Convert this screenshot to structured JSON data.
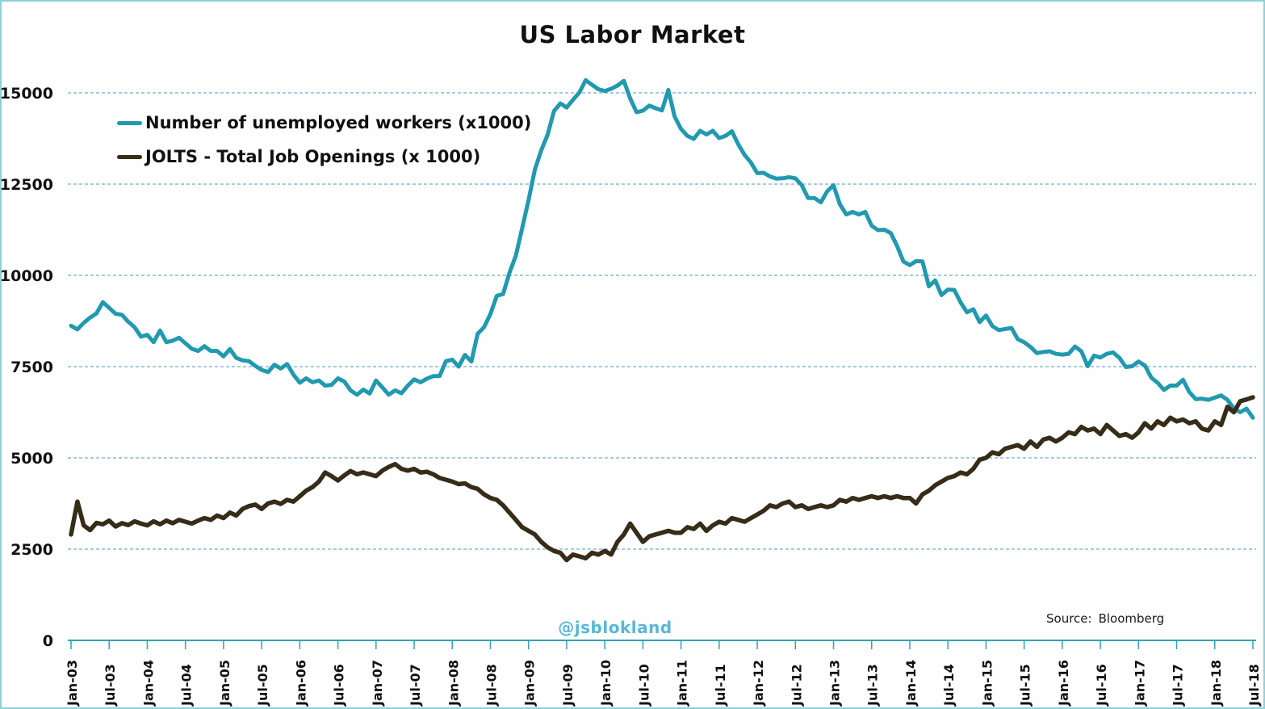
{
  "title": "US Labor Market",
  "watermark": "@jsblokland",
  "source": {
    "label": "Source:",
    "value": "Bloomberg"
  },
  "colors": {
    "unemployed_line": "#2199af",
    "jolts_line": "#372c18",
    "gridline": "#4e95c5",
    "axis": "#2ea3b4",
    "frame_border": "#8fd0d8",
    "watermark": "#58b7d7",
    "text": "#111111"
  },
  "chart_data": {
    "type": "line",
    "title": "US Labor Market",
    "xlabel": "",
    "ylabel": "",
    "ylim": [
      0,
      15000
    ],
    "y_ticks": [
      0,
      2500,
      5000,
      7500,
      10000,
      12500,
      15000
    ],
    "grid": "horizontal dashed",
    "legend_position": "top-left inside",
    "x_start": "Jan-03",
    "x_end": "Jul-18",
    "x_interval": "monthly",
    "x_tick_labels": [
      "Jan-03",
      "Jul-03",
      "Jan-04",
      "Jul-04",
      "Jan-05",
      "Jul-05",
      "Jan-06",
      "Jul-06",
      "Jan-07",
      "Jul-07",
      "Jan-08",
      "Jul-08",
      "Jan-09",
      "Jul-09",
      "Jan-10",
      "Jul-10",
      "Jan-11",
      "Jul-11",
      "Jan-12",
      "Jul-12",
      "Jan-13",
      "Jul-13",
      "Jan-14",
      "Jul-14",
      "Jan-15",
      "Jul-15",
      "Jan-16",
      "Jul-16",
      "Jan-17",
      "Jul-17",
      "Jan-18",
      "Jul-18"
    ],
    "series": [
      {
        "name": "Number of unemployed workers (x1000)",
        "color": "#2199af",
        "values": [
          8620,
          8520,
          8700,
          8842,
          8957,
          9266,
          9110,
          8950,
          8920,
          8730,
          8580,
          8320,
          8370,
          8170,
          8490,
          8170,
          8210,
          8290,
          8140,
          7990,
          7930,
          8060,
          7930,
          7930,
          7780,
          7980,
          7740,
          7670,
          7650,
          7520,
          7410,
          7350,
          7550,
          7450,
          7570,
          7280,
          7060,
          7180,
          7070,
          7120,
          6980,
          7000,
          7180,
          7090,
          6850,
          6730,
          6870,
          6760,
          7120,
          6930,
          6730,
          6850,
          6770,
          6980,
          7150,
          7070,
          7170,
          7240,
          7240,
          7650,
          7690,
          7500,
          7820,
          7640,
          8400,
          8580,
          8940,
          9440,
          9490,
          10070,
          10540,
          11290,
          12060,
          12900,
          13430,
          13850,
          14500,
          14710,
          14600,
          14810,
          15010,
          15350,
          15220,
          15100,
          15050,
          15110,
          15200,
          15330,
          14850,
          14470,
          14510,
          14650,
          14580,
          14520,
          15080,
          14350,
          14010,
          13820,
          13740,
          13960,
          13860,
          13960,
          13760,
          13820,
          13950,
          13590,
          13300,
          13090,
          12800,
          12810,
          12710,
          12650,
          12660,
          12690,
          12660,
          12470,
          12120,
          12120,
          12000,
          12300,
          12470,
          11950,
          11670,
          11740,
          11670,
          11740,
          11360,
          11240,
          11250,
          11160,
          10810,
          10380,
          10280,
          10390,
          10380,
          9700,
          9860,
          9460,
          9610,
          9600,
          9260,
          8990,
          9070,
          8720,
          8900,
          8610,
          8500,
          8530,
          8560,
          8250,
          8170,
          8040,
          7870,
          7900,
          7920,
          7850,
          7830,
          7850,
          8050,
          7920,
          7510,
          7800,
          7750,
          7850,
          7890,
          7740,
          7490,
          7510,
          7640,
          7530,
          7200,
          7060,
          6860,
          6980,
          6980,
          7140,
          6800,
          6610,
          6620,
          6590,
          6650,
          6710,
          6590,
          6350,
          6250,
          6350,
          6100
        ]
      },
      {
        "name": "JOLTS - Total Job Openings (x 1000)",
        "color": "#372c18",
        "values": [
          2900,
          3800,
          3150,
          3020,
          3220,
          3180,
          3280,
          3120,
          3210,
          3160,
          3260,
          3200,
          3150,
          3260,
          3180,
          3280,
          3210,
          3300,
          3250,
          3200,
          3280,
          3350,
          3300,
          3420,
          3350,
          3500,
          3420,
          3600,
          3680,
          3720,
          3600,
          3750,
          3800,
          3740,
          3850,
          3800,
          3950,
          4100,
          4200,
          4350,
          4600,
          4500,
          4380,
          4520,
          4640,
          4550,
          4600,
          4550,
          4500,
          4650,
          4750,
          4830,
          4700,
          4650,
          4700,
          4600,
          4620,
          4550,
          4450,
          4400,
          4350,
          4280,
          4300,
          4200,
          4150,
          4000,
          3900,
          3850,
          3700,
          3500,
          3300,
          3100,
          3000,
          2900,
          2700,
          2550,
          2450,
          2400,
          2200,
          2350,
          2300,
          2250,
          2400,
          2350,
          2450,
          2350,
          2700,
          2900,
          3200,
          2950,
          2700,
          2850,
          2900,
          2950,
          3000,
          2950,
          2950,
          3100,
          3050,
          3200,
          3000,
          3150,
          3250,
          3200,
          3350,
          3300,
          3250,
          3350,
          3450,
          3550,
          3700,
          3650,
          3750,
          3800,
          3650,
          3700,
          3600,
          3650,
          3700,
          3650,
          3700,
          3850,
          3800,
          3900,
          3850,
          3900,
          3950,
          3900,
          3950,
          3900,
          3950,
          3900,
          3900,
          3750,
          4000,
          4100,
          4250,
          4350,
          4450,
          4500,
          4600,
          4550,
          4700,
          4950,
          5000,
          5150,
          5100,
          5250,
          5300,
          5350,
          5250,
          5450,
          5300,
          5500,
          5550,
          5450,
          5550,
          5700,
          5650,
          5850,
          5750,
          5800,
          5650,
          5900,
          5750,
          5600,
          5650,
          5550,
          5700,
          5950,
          5800,
          6000,
          5900,
          6100,
          6000,
          6050,
          5950,
          6000,
          5800,
          5750,
          6000,
          5900,
          6400,
          6250,
          6550,
          6600,
          6660
        ]
      }
    ]
  }
}
